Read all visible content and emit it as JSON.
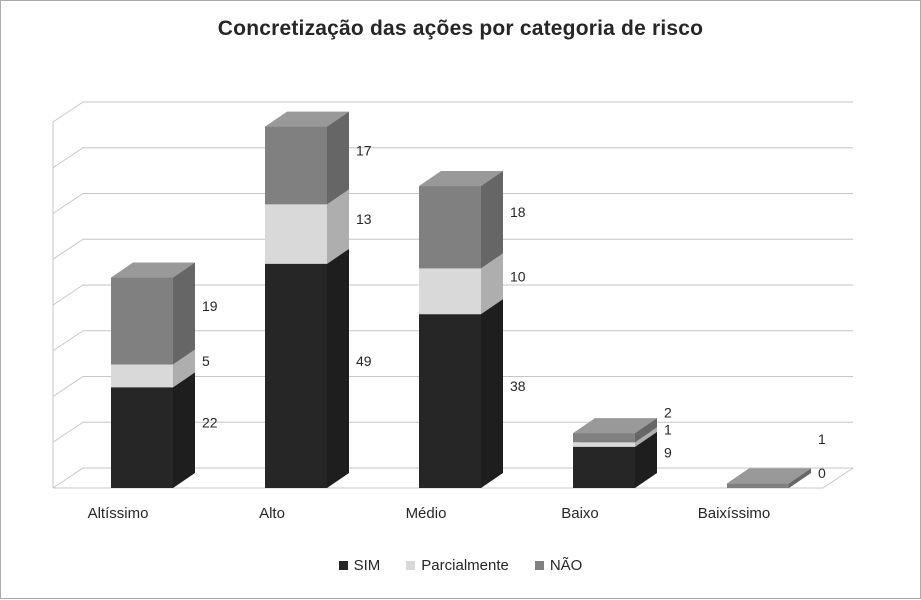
{
  "chart_data": {
    "type": "bar",
    "subtype": "stacked-3d-column",
    "title": "Concretização das ações por categoria de risco",
    "categories": [
      "Altíssimo",
      "Alto",
      "Médio",
      "Baixo",
      "Baixíssimo"
    ],
    "series": [
      {
        "name": "SIM",
        "color": "#262626",
        "values": [
          22,
          49,
          38,
          9,
          0
        ],
        "labels": [
          "22",
          "49",
          "38",
          "9",
          "0"
        ]
      },
      {
        "name": "Parcialmente",
        "color": "#d9d9d9",
        "values": [
          5,
          13,
          10,
          1,
          0
        ],
        "labels": [
          "5",
          "13",
          "10",
          "1",
          ""
        ]
      },
      {
        "name": "NÃO",
        "color": "#808080",
        "values": [
          19,
          17,
          18,
          2,
          1
        ],
        "labels": [
          "19",
          "17",
          "18",
          "2",
          "1"
        ]
      }
    ],
    "xlabel": "",
    "ylabel": "",
    "ylim": [
      0,
      80
    ],
    "gridline_step": 10,
    "grid": true,
    "value_axis_labels_visible": false,
    "legend_position": "bottom"
  },
  "colors": {
    "background": "#ffffff",
    "frame_border": "#ababab",
    "gridline": "#c6c6c6",
    "text": "#262626"
  }
}
